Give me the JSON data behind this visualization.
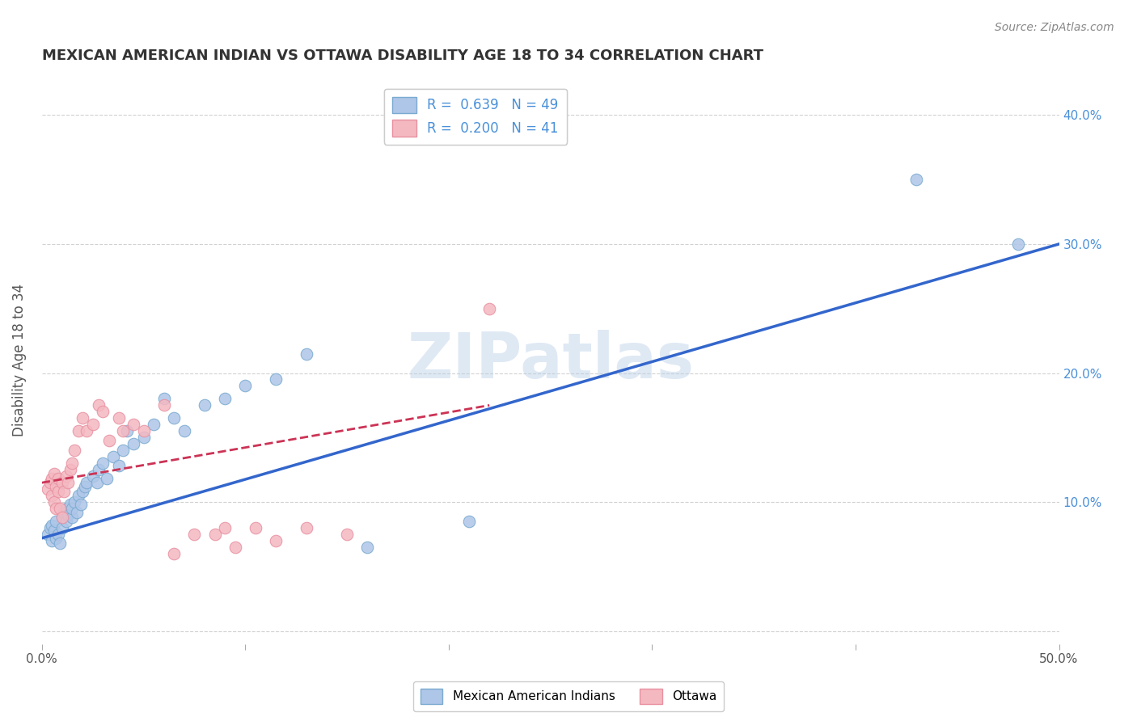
{
  "title": "MEXICAN AMERICAN INDIAN VS OTTAWA DISABILITY AGE 18 TO 34 CORRELATION CHART",
  "source": "Source: ZipAtlas.com",
  "ylabel": "Disability Age 18 to 34",
  "xlim": [
    0.0,
    0.5
  ],
  "ylim": [
    -0.01,
    0.43
  ],
  "xticks": [
    0.0,
    0.1,
    0.2,
    0.3,
    0.4,
    0.5
  ],
  "yticks": [
    0.0,
    0.1,
    0.2,
    0.3,
    0.4
  ],
  "xtick_labels": [
    "0.0%",
    "",
    "",
    "",
    "",
    "50.0%"
  ],
  "left_ytick_labels": [
    "",
    "",
    "",
    "",
    ""
  ],
  "right_ytick_labels": [
    "",
    "10.0%",
    "20.0%",
    "30.0%",
    "40.0%"
  ],
  "legend_entries": [
    {
      "label": "R =  0.639   N = 49",
      "color": "#aec6e8",
      "edge": "#7aaad0"
    },
    {
      "label": "R =  0.200   N = 41",
      "color": "#f4b8c1",
      "edge": "#e890a0"
    }
  ],
  "legend_bottom_entries": [
    {
      "label": "Mexican American Indians",
      "color": "#aec6e8",
      "edge": "#7aaad0"
    },
    {
      "label": "Ottawa",
      "color": "#f4b8c1",
      "edge": "#e890a0"
    }
  ],
  "blue_scatter_x": [
    0.003,
    0.004,
    0.005,
    0.005,
    0.006,
    0.007,
    0.007,
    0.008,
    0.009,
    0.01,
    0.01,
    0.011,
    0.012,
    0.012,
    0.013,
    0.014,
    0.015,
    0.015,
    0.016,
    0.017,
    0.018,
    0.019,
    0.02,
    0.021,
    0.022,
    0.025,
    0.027,
    0.028,
    0.03,
    0.032,
    0.035,
    0.038,
    0.04,
    0.042,
    0.045,
    0.05,
    0.055,
    0.06,
    0.065,
    0.07,
    0.08,
    0.09,
    0.1,
    0.115,
    0.13,
    0.16,
    0.21,
    0.43,
    0.48
  ],
  "blue_scatter_y": [
    0.075,
    0.08,
    0.07,
    0.082,
    0.078,
    0.072,
    0.085,
    0.075,
    0.068,
    0.08,
    0.088,
    0.092,
    0.085,
    0.095,
    0.09,
    0.098,
    0.088,
    0.095,
    0.1,
    0.092,
    0.105,
    0.098,
    0.108,
    0.112,
    0.115,
    0.12,
    0.115,
    0.125,
    0.13,
    0.118,
    0.135,
    0.128,
    0.14,
    0.155,
    0.145,
    0.15,
    0.16,
    0.18,
    0.165,
    0.155,
    0.175,
    0.18,
    0.19,
    0.195,
    0.215,
    0.065,
    0.085,
    0.35,
    0.3
  ],
  "pink_scatter_x": [
    0.003,
    0.004,
    0.005,
    0.005,
    0.006,
    0.006,
    0.007,
    0.007,
    0.008,
    0.008,
    0.009,
    0.01,
    0.01,
    0.011,
    0.012,
    0.013,
    0.014,
    0.015,
    0.016,
    0.018,
    0.02,
    0.022,
    0.025,
    0.028,
    0.03,
    0.033,
    0.038,
    0.04,
    0.045,
    0.05,
    0.06,
    0.065,
    0.075,
    0.085,
    0.09,
    0.095,
    0.105,
    0.115,
    0.13,
    0.15,
    0.22
  ],
  "pink_scatter_y": [
    0.11,
    0.115,
    0.105,
    0.118,
    0.1,
    0.122,
    0.095,
    0.112,
    0.108,
    0.118,
    0.095,
    0.088,
    0.115,
    0.108,
    0.12,
    0.115,
    0.125,
    0.13,
    0.14,
    0.155,
    0.165,
    0.155,
    0.16,
    0.175,
    0.17,
    0.148,
    0.165,
    0.155,
    0.16,
    0.155,
    0.175,
    0.06,
    0.075,
    0.075,
    0.08,
    0.065,
    0.08,
    0.07,
    0.08,
    0.075,
    0.25
  ],
  "blue_line_x": [
    0.0,
    0.5
  ],
  "blue_line_y": [
    0.072,
    0.3
  ],
  "pink_line_x": [
    0.0,
    0.22
  ],
  "pink_line_y": [
    0.115,
    0.175
  ],
  "background_color": "#ffffff",
  "grid_color": "#cccccc",
  "title_color": "#333333",
  "axis_label_color": "#555555",
  "tick_label_color_blue": "#4a90d9",
  "tick_label_color_dark": "#555555",
  "scatter_blue_color": "#aec6e8",
  "scatter_pink_color": "#f4b8c1",
  "scatter_blue_edge": "#7aaad0",
  "scatter_pink_edge": "#e890a0",
  "line_blue_color": "#3366cc",
  "line_pink_color": "#cc3355",
  "watermark_text": "ZIPatlas",
  "watermark_color": "#b8cfe8",
  "watermark_alpha": 0.45
}
